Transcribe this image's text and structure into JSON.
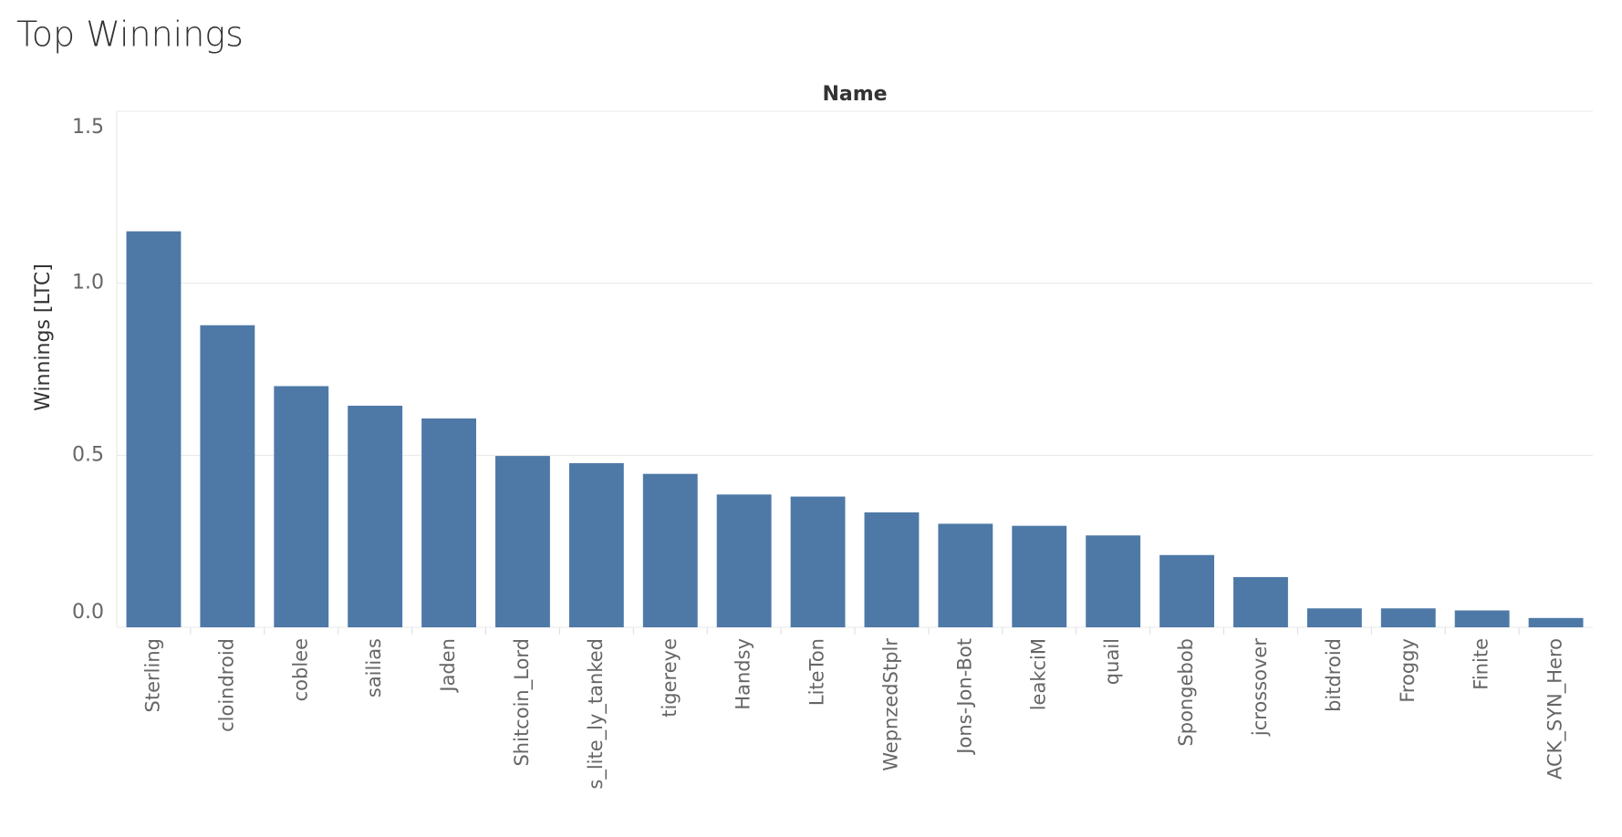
{
  "chart_data": {
    "type": "bar",
    "title": "Top Winnings",
    "x_header": "Name",
    "y_label": "Winnings [LTC]",
    "categories": [
      "Sterling",
      "cloindroid",
      "coblee",
      "sailias",
      "Jaden",
      "Shitcoin_Lord",
      "s_lite_ly_tanked",
      "tigereye",
      "Handsy",
      "LiteTon",
      "WepnzedStplr",
      "Jons-Jon-Bot",
      "leakciM",
      "quail",
      "Spongebob",
      "jcrossover",
      "bitdroid",
      "Froggy",
      "Finite",
      "ACK_SYN_Hero"
    ],
    "values": [
      1.151,
      0.878,
      0.701,
      0.644,
      0.607,
      0.498,
      0.477,
      0.446,
      0.386,
      0.38,
      0.334,
      0.301,
      0.295,
      0.267,
      0.21,
      0.146,
      0.055,
      0.055,
      0.049,
      0.027
    ],
    "color": "#4e79a7",
    "ylim": [
      0,
      1.5
    ],
    "yticks": [
      {
        "value": 0,
        "label": "0.0"
      },
      0.5,
      {
        "value": 1,
        "label": "1.0"
      },
      1.5
    ],
    "grid": true
  }
}
